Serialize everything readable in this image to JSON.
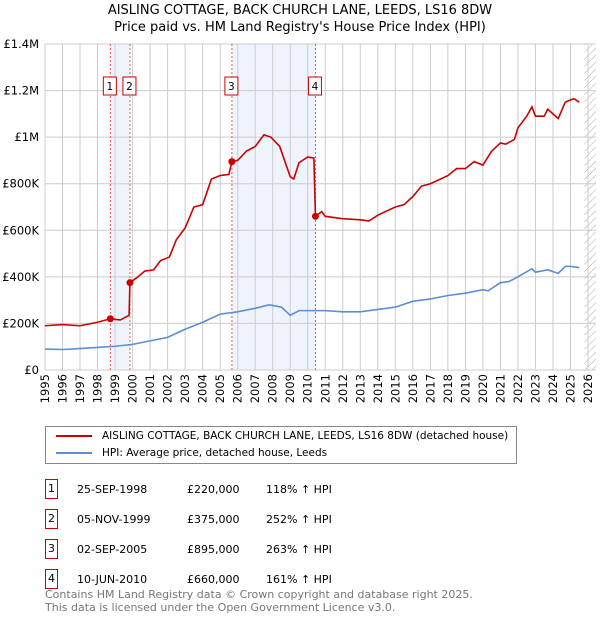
{
  "chart_data": {
    "type": "line",
    "title": "AISLING COTTAGE, BACK CHURCH LANE, LEEDS, LS16 8DW",
    "subtitle": "Price paid vs. HM Land Registry's House Price Index (HPI)",
    "xlim": [
      1995,
      2026
    ],
    "ylim": [
      0,
      1400000
    ],
    "x_ticks": [
      "1995",
      "1996",
      "1997",
      "1998",
      "1999",
      "2000",
      "2001",
      "2002",
      "2003",
      "2004",
      "2005",
      "2006",
      "2007",
      "2008",
      "2009",
      "2010",
      "2011",
      "2012",
      "2013",
      "2014",
      "2015",
      "2016",
      "2017",
      "2018",
      "2019",
      "2020",
      "2021",
      "2022",
      "2023",
      "2024",
      "2025",
      "2026"
    ],
    "y_ticks": [
      {
        "v": 0,
        "label": "£0"
      },
      {
        "v": 200000,
        "label": "£200K"
      },
      {
        "v": 400000,
        "label": "£400K"
      },
      {
        "v": 600000,
        "label": "£600K"
      },
      {
        "v": 800000,
        "label": "£800K"
      },
      {
        "v": 1000000,
        "label": "£1M"
      },
      {
        "v": 1200000,
        "label": "£1.2M"
      },
      {
        "v": 1400000,
        "label": "£1.4M"
      }
    ],
    "grid": true,
    "series": [
      {
        "name": "AISLING COTTAGE, BACK CHURCH LANE, LEEDS, LS16 8DW (detached house)",
        "color": "#cc0000",
        "x": [
          1995,
          1996,
          1997,
          1998,
          1998.73,
          1999.3,
          1999.8,
          1999.85,
          2000.3,
          2000.7,
          2001.2,
          2001.6,
          2002.1,
          2002.5,
          2003,
          2003.5,
          2004,
          2004.5,
          2005,
          2005.5,
          2005.67,
          2006,
          2006.5,
          2007,
          2007.5,
          2007.9,
          2008.4,
          2009,
          2009.2,
          2009.5,
          2010,
          2010.35,
          2010.44,
          2010.8,
          2011,
          2012,
          2013,
          2013.5,
          2014,
          2015,
          2015.5,
          2016,
          2016.5,
          2017,
          2018,
          2018.5,
          2019,
          2019.5,
          2020,
          2020.5,
          2021,
          2021.3,
          2021.8,
          2022,
          2022.5,
          2022.8,
          2023,
          2023.5,
          2023.7,
          2024,
          2024.3,
          2024.7,
          2025,
          2025.2,
          2025.5
        ],
        "y": [
          190000,
          195000,
          190000,
          205000,
          220000,
          215000,
          235000,
          375000,
          400000,
          425000,
          430000,
          470000,
          485000,
          560000,
          610000,
          700000,
          710000,
          820000,
          835000,
          840000,
          895000,
          900000,
          940000,
          960000,
          1010000,
          1000000,
          960000,
          830000,
          820000,
          890000,
          915000,
          910000,
          660000,
          680000,
          660000,
          650000,
          645000,
          640000,
          665000,
          700000,
          710000,
          745000,
          790000,
          800000,
          835000,
          865000,
          865000,
          895000,
          880000,
          940000,
          975000,
          970000,
          990000,
          1040000,
          1090000,
          1130000,
          1090000,
          1090000,
          1120000,
          1100000,
          1080000,
          1150000,
          1160000,
          1165000,
          1150000
        ]
      },
      {
        "name": "HPI: Average price, detached house, Leeds",
        "color": "#5b8fd4",
        "x": [
          1995,
          1996,
          1997,
          1998,
          1999,
          2000,
          2001,
          2002,
          2003,
          2004,
          2005,
          2006,
          2007,
          2007.8,
          2008.5,
          2009,
          2009.5,
          2010,
          2011,
          2012,
          2013,
          2014,
          2015,
          2016,
          2017,
          2018,
          2019,
          2020,
          2020.3,
          2021,
          2021.5,
          2022,
          2022.8,
          2023,
          2023.7,
          2024.3,
          2024.7,
          2025,
          2025.5
        ],
        "y": [
          90000,
          88000,
          92000,
          97000,
          102000,
          110000,
          125000,
          140000,
          175000,
          205000,
          240000,
          250000,
          265000,
          280000,
          270000,
          235000,
          255000,
          255000,
          255000,
          250000,
          250000,
          260000,
          270000,
          295000,
          305000,
          320000,
          330000,
          345000,
          340000,
          375000,
          380000,
          400000,
          435000,
          420000,
          430000,
          415000,
          445000,
          445000,
          440000
        ]
      }
    ],
    "sales": [
      {
        "id": "1",
        "x": 1998.73,
        "y": 220000,
        "date": "25-SEP-1998",
        "price": "£220,000",
        "hpi": "118% ↑ HPI"
      },
      {
        "id": "2",
        "x": 1999.85,
        "y": 375000,
        "date": "05-NOV-1999",
        "price": "£375,000",
        "hpi": "252% ↑ HPI"
      },
      {
        "id": "3",
        "x": 2005.67,
        "y": 895000,
        "date": "02-SEP-2005",
        "price": "£895,000",
        "hpi": "263% ↑ HPI"
      },
      {
        "id": "4",
        "x": 2010.44,
        "y": 660000,
        "date": "10-JUN-2010",
        "price": "£660,000",
        "hpi": "161% ↑ HPI"
      }
    ],
    "forecast_from": 2025.8
  },
  "footer": {
    "line1": "Contains HM Land Registry data © Crown copyright and database right 2025.",
    "line2": "This data is licensed under the Open Government Licence v3.0."
  }
}
